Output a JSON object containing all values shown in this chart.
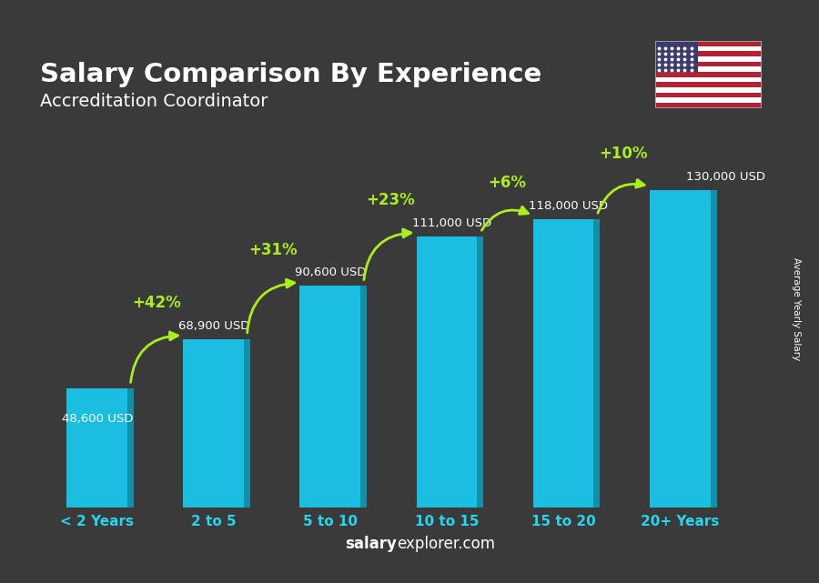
{
  "title": "Salary Comparison By Experience",
  "subtitle": "Accreditation Coordinator",
  "categories": [
    "< 2 Years",
    "2 to 5",
    "5 to 10",
    "10 to 15",
    "15 to 20",
    "20+ Years"
  ],
  "values": [
    48600,
    68900,
    90600,
    111000,
    118000,
    130000
  ],
  "value_labels": [
    "48,600 USD",
    "68,900 USD",
    "90,600 USD",
    "111,000 USD",
    "118,000 USD",
    "130,000 USD"
  ],
  "pct_labels": [
    "+42%",
    "+31%",
    "+23%",
    "+6%",
    "+10%"
  ],
  "bar_color_main": "#1BBDE0",
  "bar_color_right": "#1290AA",
  "bar_color_top": "#45D0EE",
  "pct_color": "#AAEE22",
  "title_color": "#FFFFFF",
  "subtitle_color": "#FFFFFF",
  "label_color": "#FFFFFF",
  "tick_color": "#29D4EE",
  "ylabel": "Average Yearly Salary",
  "footer_salary": "salary",
  "footer_rest": "explorer.com",
  "background_color": "#3A3A3A",
  "ylim": [
    0,
    160000
  ]
}
